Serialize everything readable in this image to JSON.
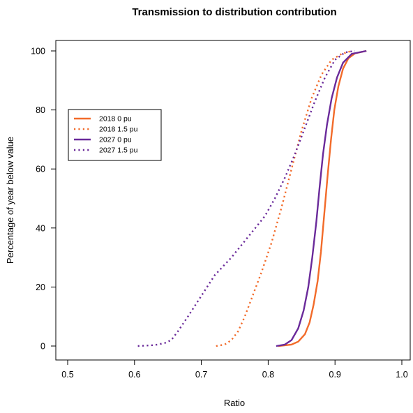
{
  "chart_data": {
    "type": "line",
    "title": "Transmission to distribution contribution",
    "xlabel": "Ratio",
    "ylabel": "Percentage of year below value",
    "xlim": [
      0.5,
      1.0
    ],
    "ylim": [
      0,
      100
    ],
    "x_ticks": [
      "0.5",
      "0.6",
      "0.7",
      "0.8",
      "0.9",
      "1.0"
    ],
    "y_ticks": [
      "0",
      "20",
      "40",
      "60",
      "80",
      "100"
    ],
    "grid": false,
    "legend_position": "left",
    "series": [
      {
        "name": "2018 0 pu",
        "color": "#f26b2a",
        "line_style": "solid",
        "points": [
          [
            0.815,
            0
          ],
          [
            0.835,
            0.5
          ],
          [
            0.845,
            1.5
          ],
          [
            0.855,
            4
          ],
          [
            0.862,
            8
          ],
          [
            0.868,
            14
          ],
          [
            0.874,
            22
          ],
          [
            0.879,
            32
          ],
          [
            0.884,
            45
          ],
          [
            0.889,
            58
          ],
          [
            0.894,
            70
          ],
          [
            0.899,
            80
          ],
          [
            0.905,
            88
          ],
          [
            0.912,
            94
          ],
          [
            0.92,
            97.5
          ],
          [
            0.93,
            99.2
          ],
          [
            0.947,
            100
          ]
        ]
      },
      {
        "name": "2018 1.5 pu",
        "color": "#f26b2a",
        "line_style": "dotted",
        "points": [
          [
            0.722,
            0
          ],
          [
            0.735,
            0.5
          ],
          [
            0.745,
            2
          ],
          [
            0.755,
            5
          ],
          [
            0.765,
            10
          ],
          [
            0.775,
            16
          ],
          [
            0.79,
            25
          ],
          [
            0.805,
            35
          ],
          [
            0.82,
            47
          ],
          [
            0.835,
            60
          ],
          [
            0.85,
            73
          ],
          [
            0.865,
            84
          ],
          [
            0.88,
            92
          ],
          [
            0.895,
            97
          ],
          [
            0.91,
            99
          ],
          [
            0.925,
            100
          ]
        ]
      },
      {
        "name": "2027 0 pu",
        "color": "#6a2a9a",
        "line_style": "solid",
        "points": [
          [
            0.812,
            0
          ],
          [
            0.825,
            0.5
          ],
          [
            0.835,
            2
          ],
          [
            0.845,
            6
          ],
          [
            0.853,
            12
          ],
          [
            0.86,
            20
          ],
          [
            0.866,
            30
          ],
          [
            0.872,
            42
          ],
          [
            0.877,
            54
          ],
          [
            0.882,
            65
          ],
          [
            0.888,
            75
          ],
          [
            0.895,
            84
          ],
          [
            0.903,
            91
          ],
          [
            0.912,
            96
          ],
          [
            0.925,
            99
          ],
          [
            0.947,
            100
          ]
        ]
      },
      {
        "name": "2027 1.5 pu",
        "color": "#6a2a9a",
        "line_style": "dotted",
        "points": [
          [
            0.605,
            0
          ],
          [
            0.63,
            0.3
          ],
          [
            0.645,
            1
          ],
          [
            0.655,
            2
          ],
          [
            0.665,
            5
          ],
          [
            0.68,
            10
          ],
          [
            0.7,
            17
          ],
          [
            0.72,
            24
          ],
          [
            0.745,
            30
          ],
          [
            0.77,
            37
          ],
          [
            0.795,
            44
          ],
          [
            0.81,
            50
          ],
          [
            0.825,
            57
          ],
          [
            0.84,
            65
          ],
          [
            0.855,
            74
          ],
          [
            0.87,
            83
          ],
          [
            0.885,
            91
          ],
          [
            0.9,
            97
          ],
          [
            0.915,
            99.5
          ],
          [
            0.93,
            100
          ]
        ]
      }
    ]
  }
}
